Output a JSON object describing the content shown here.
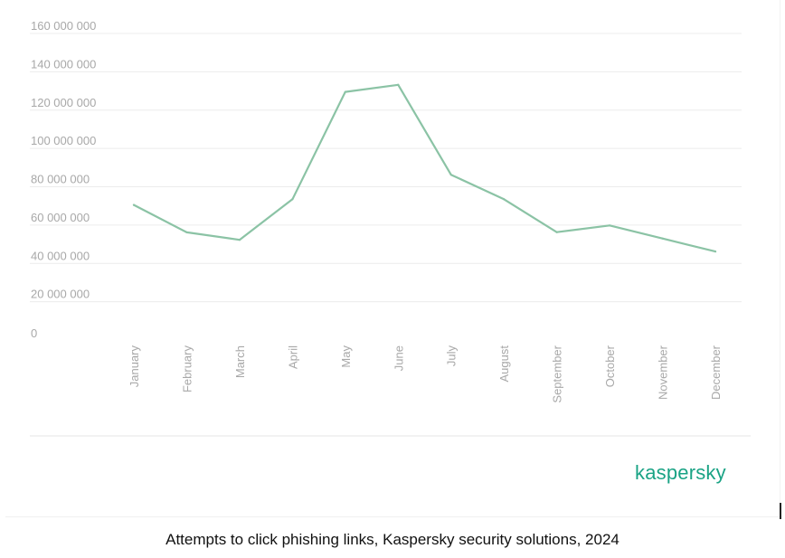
{
  "chart_data": {
    "type": "line",
    "title": "",
    "xlabel": "",
    "ylabel": "",
    "categories": [
      "January",
      "February",
      "March",
      "April",
      "May",
      "June",
      "July",
      "August",
      "September",
      "October",
      "November",
      "December"
    ],
    "series": [
      {
        "values": [
          70500000,
          56200000,
          52300000,
          73500000,
          129500000,
          133200000,
          86300000,
          73500000,
          56300000,
          59800000,
          53000000,
          46200000
        ]
      }
    ],
    "ylim": [
      0,
      160000000
    ],
    "yticks": [
      "0",
      "20 000 000",
      "40 000 000",
      "60 000 000",
      "80 000 000",
      "100 000 000",
      "120 000 000",
      "140 000 000",
      "160 000 000"
    ],
    "grid": true,
    "colors": {
      "line": "#8bc3a5",
      "tick_text": "#a8a8a8",
      "grid": "#ececec"
    }
  },
  "branding": {
    "logo_text": "kaspersky",
    "logo_color": "#1aa385"
  },
  "caption": {
    "text": "Attempts to click phishing links, Kaspersky security solutions, 2024"
  }
}
